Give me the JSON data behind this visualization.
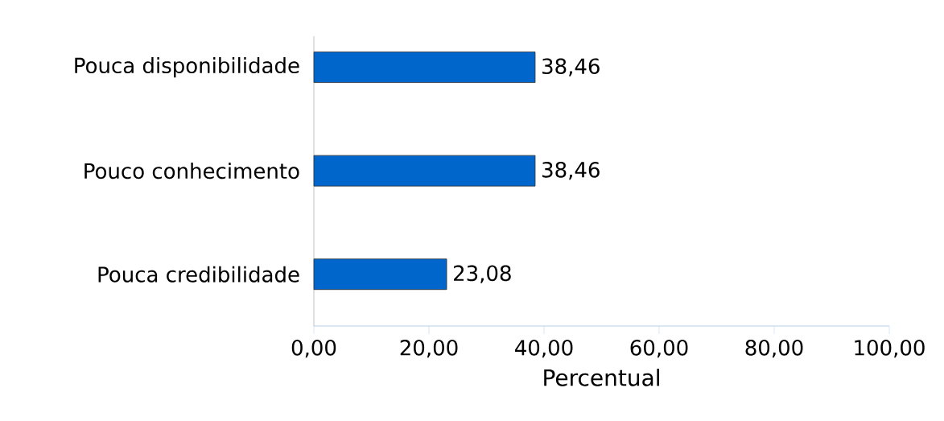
{
  "chart_data": {
    "type": "bar",
    "orientation": "horizontal",
    "xlabel": "Percentual",
    "categories": [
      "Pouca disponibilidade",
      "Pouco conhecimento",
      "Pouca credibilidade"
    ],
    "values": [
      38.46,
      38.46,
      23.08
    ],
    "value_labels": [
      "38,46",
      "38,46",
      "23,08"
    ],
    "color": "#0066cc",
    "xlim": [
      0,
      100
    ],
    "xticks": [
      {
        "value": 0,
        "label": "0,00"
      },
      {
        "value": 20,
        "label": "20,00"
      },
      {
        "value": 40,
        "label": "40,00"
      },
      {
        "value": 60,
        "label": "60,00"
      },
      {
        "value": 80,
        "label": "80,00"
      },
      {
        "value": 100,
        "label": "100,00"
      }
    ],
    "grid": false
  }
}
